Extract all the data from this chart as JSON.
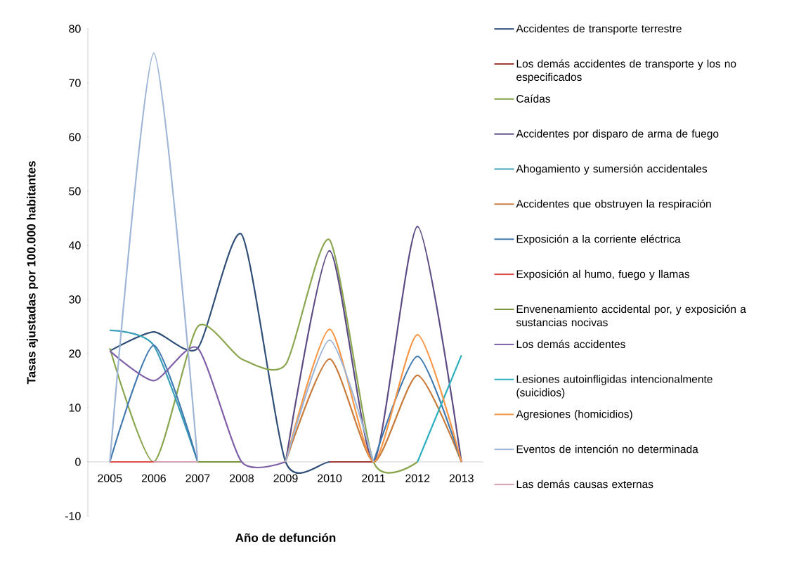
{
  "chart_data": {
    "type": "line",
    "xlabel": "Año de defunción",
    "ylabel": "Tasas ajustadas por 100.000 habitantes",
    "categories": [
      "2005",
      "2006",
      "2007",
      "2008",
      "2009",
      "2010",
      "2011",
      "2012",
      "2013"
    ],
    "ylim": [
      -10,
      80
    ],
    "yticks": [
      -10,
      0,
      10,
      20,
      30,
      40,
      50,
      60,
      70,
      80
    ],
    "grid": false,
    "legend": "right",
    "marker": "none",
    "line_style": "solid",
    "series": [
      {
        "name": "Accidentes de transporte terrestre",
        "color": "#2f4e78",
        "values": [
          20.5,
          24,
          21,
          42,
          0,
          0,
          0,
          null,
          null
        ]
      },
      {
        "name": "Los demás accidentes de transporte y los no especificados",
        "color": "#a03c3a",
        "values": [
          null,
          null,
          null,
          null,
          null,
          0,
          0,
          null,
          null
        ]
      },
      {
        "name": "Caídas",
        "color": "#8aa64e",
        "values": [
          21,
          0,
          25,
          19,
          18,
          41,
          0,
          0,
          null
        ]
      },
      {
        "name": "Accidentes por disparo de arma de fuego",
        "color": "#5e4b84",
        "values": [
          null,
          null,
          null,
          null,
          0,
          39,
          0,
          43.5,
          0
        ]
      },
      {
        "name": "Ahogamiento y sumersión accidentales",
        "color": "#3a9fb8",
        "values": [
          24.3,
          21.5,
          0,
          null,
          null,
          null,
          null,
          null,
          null
        ]
      },
      {
        "name": "Accidentes que obstruyen la respiración",
        "color": "#c77a3a",
        "values": [
          null,
          null,
          null,
          null,
          0,
          19,
          0,
          16,
          0
        ]
      },
      {
        "name": "Exposición a la corriente eléctrica",
        "color": "#3f79b0",
        "values": [
          0,
          21.5,
          0,
          null,
          null,
          null,
          0,
          19.5,
          0
        ]
      },
      {
        "name": "Exposición al humo, fuego y llamas",
        "color": "#d9504d",
        "values": [
          0,
          0,
          null,
          null,
          null,
          null,
          null,
          null,
          null
        ]
      },
      {
        "name": "Envenenamiento accidental por, y exposición a sustancias nocivas",
        "color": "#77933c",
        "values": [
          null,
          null,
          0,
          0,
          null,
          null,
          null,
          null,
          null
        ]
      },
      {
        "name": "Los demás accidentes",
        "color": "#7f5fa8",
        "values": [
          20.5,
          15,
          21,
          0,
          0,
          null,
          null,
          null,
          null
        ]
      },
      {
        "name": "Lesiones autoinfligidas intencionalmente (suicidios)",
        "color": "#2cb0c0",
        "values": [
          null,
          null,
          null,
          null,
          null,
          null,
          null,
          0,
          19.7
        ]
      },
      {
        "name": "Agresiones (homicidios)",
        "color": "#f79646",
        "values": [
          null,
          null,
          null,
          null,
          0,
          24.5,
          0,
          23.5,
          0
        ]
      },
      {
        "name": "Eventos de intención no determinada",
        "color": "#9fb6d6",
        "values": [
          0,
          75.5,
          0,
          null,
          0,
          22.5,
          0,
          null,
          null
        ]
      },
      {
        "name": "Las demás causas externas",
        "color": "#d6a0b4",
        "values": [
          null,
          0,
          0,
          null,
          null,
          null,
          null,
          null,
          null
        ]
      }
    ]
  }
}
